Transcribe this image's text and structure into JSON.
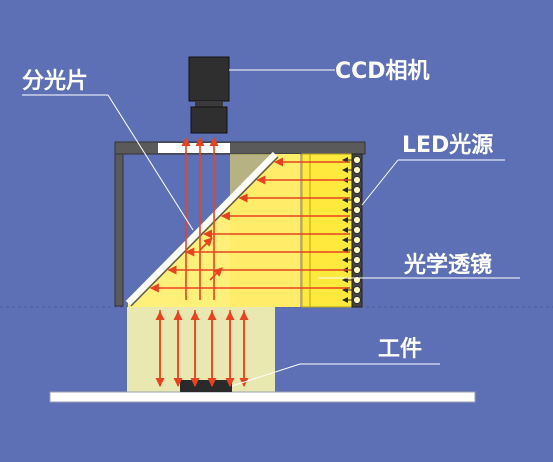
{
  "labels": {
    "ccd_camera": "CCD相机",
    "beam_splitter": "分光片",
    "led_source": "LED光源",
    "optical_lens": "光学透镜",
    "workpiece": "工件"
  },
  "colors": {
    "background": "#5e70b5",
    "bracket": "#5a5a5a",
    "camera": "#2f2f2f",
    "light_yellow": "#fff07a",
    "lens_yellow": "#ffe93c",
    "beam_panel": "#e8e8b0",
    "ray": "#e8431f",
    "splitter": "#ffffff",
    "leader_line": "#ffffff"
  },
  "icons": {
    "camera": "ccd-camera-icon",
    "led": "led-array-icon",
    "ray": "light-ray-arrow"
  }
}
